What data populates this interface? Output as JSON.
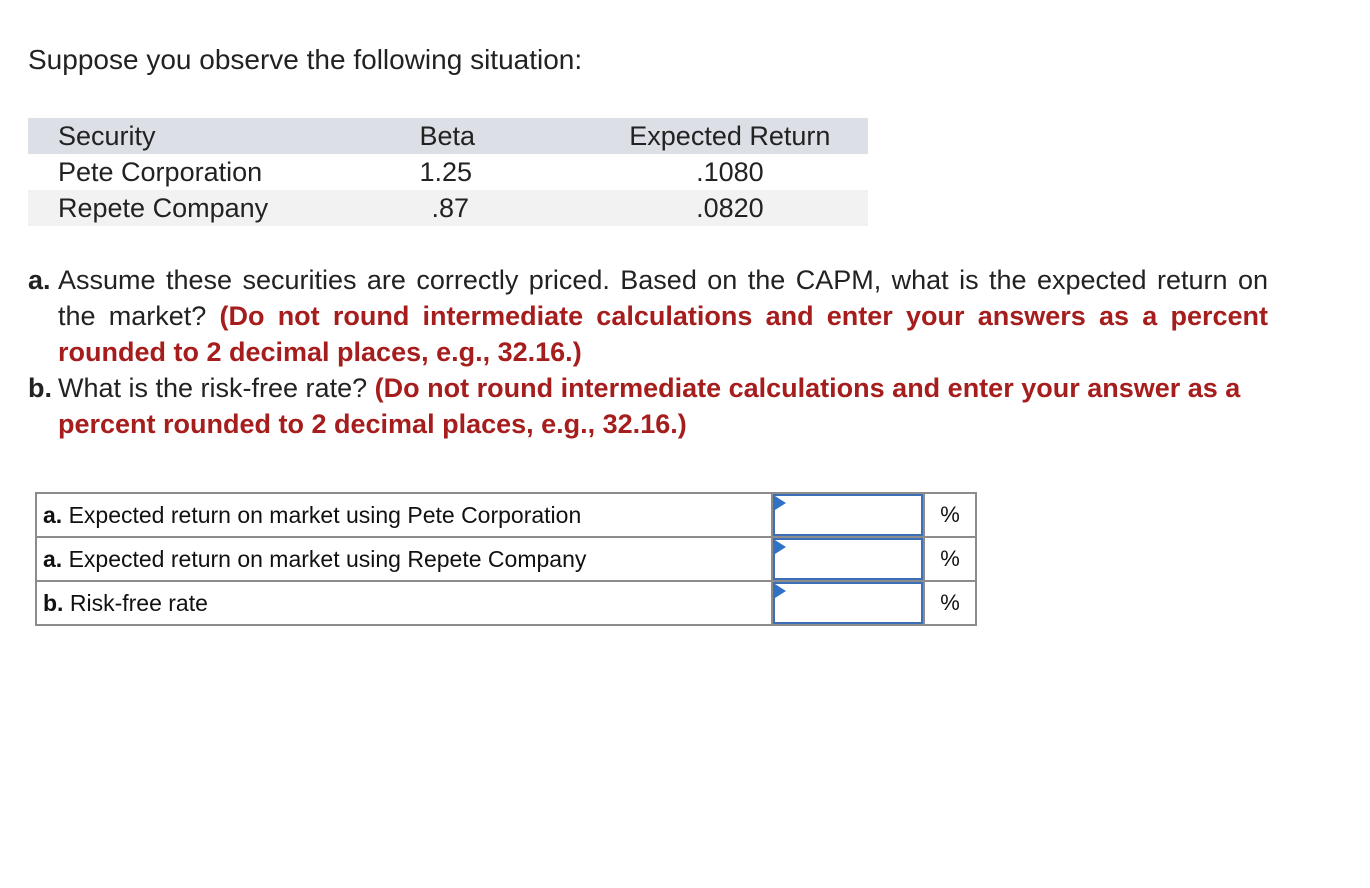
{
  "intro": "Suppose you observe the following situation:",
  "security_table": {
    "headers": {
      "security": "Security",
      "beta": "Beta",
      "expected_return": "Expected Return"
    },
    "rows": [
      {
        "security": "Pete Corporation",
        "beta": "1.25",
        "expected_return": ".1080"
      },
      {
        "security": "Repete Company",
        "beta": ".87",
        "expected_return": ".0820"
      }
    ]
  },
  "questions": [
    {
      "label": "a.",
      "text": "Assume these securities are correctly priced. Based on the CAPM, what is the expected return on the market?",
      "instruction": "(Do not round intermediate calculations and enter your answers as a percent rounded to 2 decimal places, e.g., 32.16.)"
    },
    {
      "label": "b.",
      "text": "What is the risk-free rate?",
      "instruction": "(Do not round intermediate calculations and enter your answer as a percent rounded to 2 decimal places, e.g., 32.16.)"
    }
  ],
  "answers": [
    {
      "prefix": "a.",
      "label": "Expected return on market using Pete Corporation",
      "value": "",
      "unit": "%"
    },
    {
      "prefix": "a.",
      "label": "Expected return on market using Repete Company",
      "value": "",
      "unit": "%"
    },
    {
      "prefix": "b.",
      "label": "Risk-free rate",
      "value": "",
      "unit": "%"
    }
  ],
  "colors": {
    "instruction": "#a61d1d",
    "input_border": "#3c6fb6",
    "header_bg": "#dcdfe5"
  }
}
